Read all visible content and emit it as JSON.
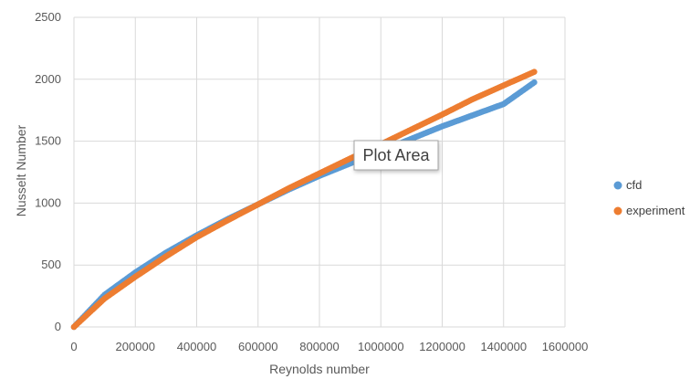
{
  "chart_data": {
    "type": "scatter",
    "xlabel": "Reynolds number",
    "ylabel": "Nusselt Number",
    "xlim": [
      0,
      1600000
    ],
    "ylim": [
      0,
      2500
    ],
    "xticks": [
      0,
      200000,
      400000,
      600000,
      800000,
      1000000,
      1200000,
      1400000,
      1600000
    ],
    "yticks": [
      0,
      500,
      1000,
      1500,
      2000,
      2500
    ],
    "grid": true,
    "legend_position": "right",
    "x_range": [
      0,
      1500000
    ],
    "series": [
      {
        "name": "cfd",
        "color": "#5B9BD5",
        "anchor_points": [
          [
            0,
            0
          ],
          [
            100000,
            260
          ],
          [
            200000,
            440
          ],
          [
            300000,
            600
          ],
          [
            400000,
            740
          ],
          [
            500000,
            870
          ],
          [
            600000,
            990
          ],
          [
            700000,
            1110
          ],
          [
            800000,
            1220
          ],
          [
            900000,
            1320
          ],
          [
            1000000,
            1420
          ],
          [
            1100000,
            1520
          ],
          [
            1200000,
            1620
          ],
          [
            1300000,
            1710
          ],
          [
            1400000,
            1800
          ],
          [
            1500000,
            1975
          ]
        ]
      },
      {
        "name": "experiment",
        "color": "#ED7D31",
        "anchor_points": [
          [
            0,
            0
          ],
          [
            100000,
            230
          ],
          [
            200000,
            405
          ],
          [
            300000,
            570
          ],
          [
            400000,
            725
          ],
          [
            500000,
            860
          ],
          [
            600000,
            990
          ],
          [
            700000,
            1120
          ],
          [
            800000,
            1240
          ],
          [
            900000,
            1360
          ],
          [
            1000000,
            1475
          ],
          [
            1100000,
            1595
          ],
          [
            1200000,
            1715
          ],
          [
            1300000,
            1840
          ],
          [
            1400000,
            1950
          ],
          [
            1500000,
            2060
          ]
        ]
      }
    ]
  },
  "tooltip": {
    "text": "Plot Area"
  }
}
